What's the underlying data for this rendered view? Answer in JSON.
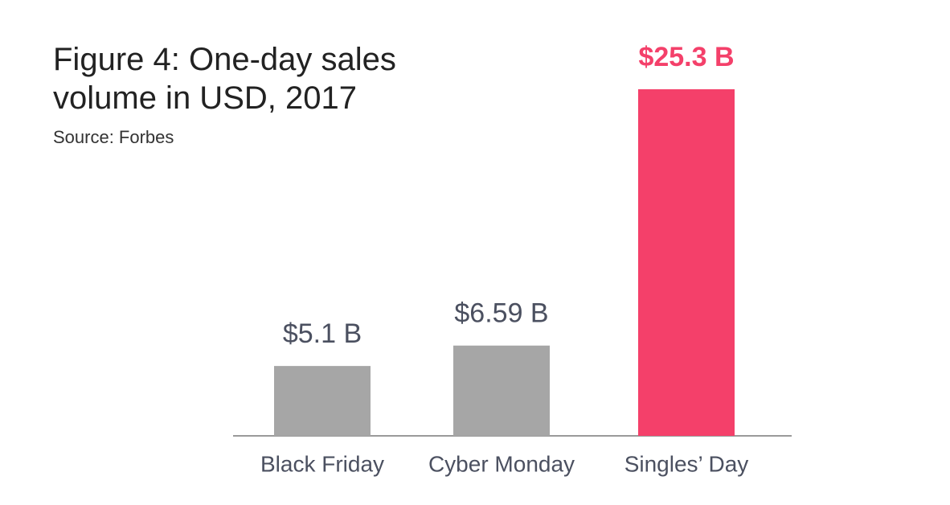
{
  "chart_data": {
    "type": "bar",
    "title": "Figure 4: One-day sales volume in USD, 2017",
    "subtitle": "Source: Forbes",
    "categories": [
      "Black Friday",
      "Cyber Monday",
      "Singles’ Day"
    ],
    "values": [
      5.1,
      6.59,
      25.3
    ],
    "value_labels": [
      "$5.1 B",
      "$6.59 B",
      "$25.3 B"
    ],
    "colors": [
      "#a6a6a6",
      "#a6a6a6",
      "#f4406a"
    ],
    "value_label_colors": [
      "#4b5060",
      "#4b5060",
      "#f4406a"
    ]
  }
}
